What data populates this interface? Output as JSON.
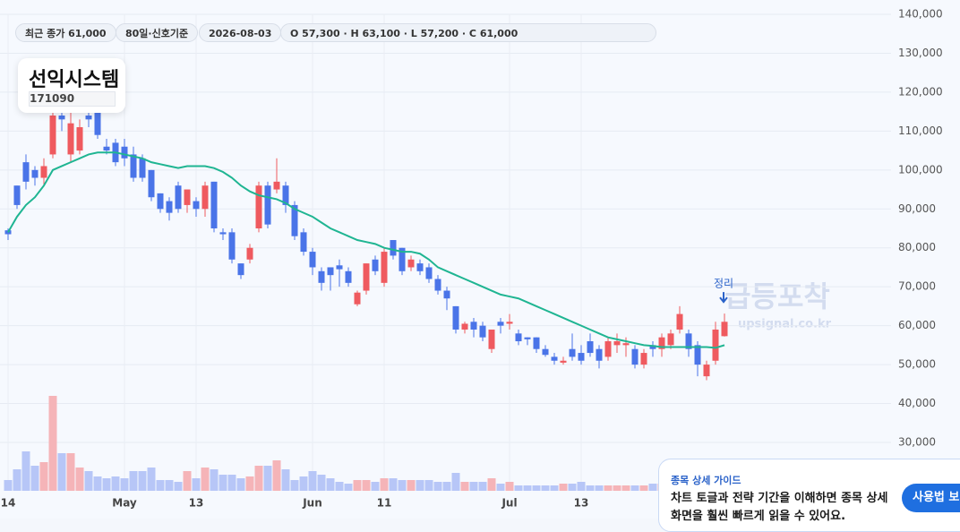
{
  "header": {
    "chips": [
      "최근 종가 61,000",
      "80일·신호기준",
      "2026-08-03",
      "O 57,300 · H 63,100 · L 57,200 · C 61,000"
    ],
    "stock_name": "선익시스템",
    "stock_code": "171090"
  },
  "watermark": {
    "title": "급등포착",
    "site": "upsignal.co.kr"
  },
  "guide": {
    "title": "종목 상세 가이드",
    "lines": [
      "차트 토글과 전략 기간을 이해하면 종목 상세",
      "화면을 훨씬 빠르게 읽을 수 있어요."
    ],
    "button": "사용법 보기"
  },
  "chart_data": {
    "type": "candlestick",
    "annotation": "정리",
    "up_color": "#ef5a5f",
    "down_color": "#4a74e8",
    "grid": true,
    "categories": [
      "14",
      null,
      null,
      null,
      null,
      null,
      null,
      null,
      null,
      null,
      null,
      null,
      null,
      "May",
      null,
      null,
      null,
      null,
      null,
      null,
      null,
      "13",
      null,
      null,
      null,
      null,
      null,
      null,
      null,
      null,
      null,
      null,
      null,
      null,
      "Jun",
      null,
      null,
      null,
      null,
      null,
      null,
      null,
      "11",
      null,
      null,
      null,
      null,
      null,
      null,
      null,
      null,
      null,
      null,
      null,
      null,
      null,
      "Jul",
      null,
      null,
      null,
      null,
      null,
      null,
      null,
      "13",
      null,
      null,
      null,
      null,
      null,
      null,
      null,
      null,
      null,
      null,
      null,
      null,
      null,
      null,
      null,
      null
    ],
    "open": [
      84500,
      96000,
      102000,
      100000,
      98000,
      104000,
      114000,
      104000,
      105000,
      114000,
      118000,
      106000,
      107000,
      106000,
      104000,
      103000,
      100000,
      94000,
      92000,
      96000,
      91000,
      92000,
      90000,
      97000,
      84000,
      84000,
      76000,
      77000,
      85000,
      96000,
      95000,
      96000,
      91000,
      84000,
      79000,
      74000,
      75000,
      75500,
      74000,
      65500,
      69000,
      77000,
      71000,
      82000,
      80000,
      75000,
      76000,
      75000,
      72000,
      69000,
      65000,
      59000,
      61000,
      60000,
      54000,
      61000,
      60500,
      58000,
      57000,
      57000,
      54000,
      52000,
      50500,
      54000,
      53000,
      56000,
      54000,
      52000,
      55000,
      55000,
      54000,
      50000,
      55000,
      54000,
      55000,
      59000,
      58000,
      55000,
      47000,
      51000,
      57300
    ],
    "high": [
      85000,
      96000,
      104000,
      101000,
      103000,
      117000,
      120000,
      118000,
      113000,
      116000,
      119000,
      108000,
      108000,
      108000,
      106000,
      104000,
      100000,
      94000,
      93000,
      97000,
      95000,
      93000,
      97000,
      97000,
      85000,
      85000,
      76000,
      81000,
      97000,
      97000,
      103000,
      97000,
      92000,
      85000,
      80000,
      75000,
      75000,
      77000,
      75000,
      69000,
      76000,
      78000,
      80000,
      82000,
      80000,
      78000,
      77000,
      76000,
      73000,
      70000,
      65000,
      61000,
      62000,
      61000,
      59000,
      62000,
      63000,
      59000,
      57000,
      57000,
      55000,
      53000,
      52000,
      58000,
      55000,
      58000,
      55000,
      57000,
      58000,
      57000,
      55000,
      54000,
      56000,
      58000,
      59000,
      65000,
      59000,
      56000,
      51000,
      61000,
      63100
    ],
    "low": [
      82000,
      90000,
      95000,
      96000,
      96000,
      103000,
      110000,
      102000,
      104000,
      111000,
      108000,
      104000,
      101000,
      101000,
      97000,
      97000,
      92000,
      89000,
      87000,
      89000,
      89000,
      88000,
      88000,
      84000,
      82000,
      76000,
      72000,
      76000,
      84000,
      85000,
      94000,
      89000,
      82000,
      78000,
      73000,
      69000,
      69000,
      70000,
      70000,
      65000,
      68000,
      73000,
      70000,
      77000,
      73000,
      74000,
      73000,
      71000,
      68000,
      64000,
      58000,
      58000,
      57000,
      56000,
      53000,
      58000,
      59000,
      55000,
      55000,
      53000,
      52000,
      50000,
      50000,
      51000,
      50000,
      52000,
      49000,
      51000,
      53000,
      52000,
      49000,
      49000,
      52000,
      52000,
      54000,
      58000,
      52000,
      47000,
      46000,
      50000,
      57200
    ],
    "close": [
      83500,
      91000,
      97000,
      98000,
      101000,
      114000,
      113000,
      112000,
      111000,
      113000,
      109000,
      105000,
      102000,
      103000,
      98000,
      98000,
      93000,
      90000,
      89000,
      90000,
      95000,
      90000,
      96000,
      85000,
      83500,
      77000,
      73000,
      80000,
      96000,
      86000,
      97000,
      91000,
      83000,
      79000,
      75000,
      71000,
      73000,
      74500,
      71000,
      68500,
      76000,
      74000,
      79000,
      78000,
      74000,
      77000,
      74000,
      72000,
      69000,
      67000,
      59000,
      60500,
      59000,
      57000,
      59000,
      60000,
      61000,
      56000,
      56500,
      54000,
      52500,
      51000,
      51000,
      52000,
      51000,
      53000,
      51000,
      56000,
      56000,
      55500,
      50000,
      53000,
      54000,
      57000,
      58000,
      63000,
      54000,
      50000,
      50000,
      59000,
      61000
    ],
    "ma": {
      "color": "#1fb592",
      "values": [
        84000,
        88000,
        91000,
        93000,
        96000,
        100000,
        101000,
        102000,
        103000,
        104000,
        104500,
        104500,
        104500,
        104000,
        103500,
        103000,
        102000,
        101500,
        101000,
        100500,
        101000,
        101000,
        101000,
        100500,
        99500,
        98000,
        96000,
        94500,
        93500,
        93000,
        92500,
        91500,
        90000,
        89000,
        88000,
        86500,
        85000,
        84000,
        83000,
        82000,
        81500,
        81000,
        80000,
        79500,
        79000,
        79000,
        78500,
        77000,
        75000,
        74000,
        73000,
        72000,
        71000,
        70000,
        69000,
        68000,
        67500,
        67000,
        66000,
        65000,
        64000,
        63000,
        62000,
        61000,
        60000,
        59000,
        58000,
        57000,
        56500,
        56000,
        55500,
        55000,
        54800,
        54500,
        54500,
        54500,
        54500,
        54500,
        54500,
        54300,
        55000
      ]
    },
    "volume": {
      "up_color": "#f5b4b8",
      "down_color": "#b7c6f7",
      "lim": [
        0,
        110
      ],
      "values": [
        12,
        24,
        44,
        28,
        32,
        106,
        42,
        42,
        26,
        22,
        16,
        14,
        16,
        14,
        22,
        22,
        26,
        12,
        12,
        10,
        22,
        14,
        26,
        24,
        18,
        18,
        14,
        16,
        28,
        28,
        34,
        24,
        12,
        16,
        22,
        18,
        14,
        10,
        8,
        12,
        12,
        10,
        14,
        14,
        12,
        12,
        12,
        12,
        10,
        10,
        20,
        10,
        10,
        10,
        14,
        8,
        10,
        6,
        6,
        6,
        6,
        6,
        8,
        8,
        10,
        6,
        6,
        6,
        6,
        6,
        6,
        6,
        8,
        8,
        10,
        10,
        12,
        14,
        12,
        10,
        12
      ]
    },
    "ylim": [
      30000,
      140000
    ],
    "yticks": [
      {
        "value": 30000,
        "label": "30,000"
      },
      {
        "value": 40000,
        "label": "40,000"
      },
      {
        "value": 50000,
        "label": "50,000"
      },
      {
        "value": 60000,
        "label": "60,000"
      },
      {
        "value": 70000,
        "label": "70,000"
      },
      {
        "value": 80000,
        "label": "80,000"
      },
      {
        "value": 90000,
        "label": "90,000"
      },
      {
        "value": 100000,
        "label": "100,000"
      },
      {
        "value": 110000,
        "label": "110,000"
      },
      {
        "value": 120000,
        "label": "120,000"
      },
      {
        "value": 130000,
        "label": "130,000"
      },
      {
        "value": 140000,
        "label": "140,000"
      }
    ]
  }
}
